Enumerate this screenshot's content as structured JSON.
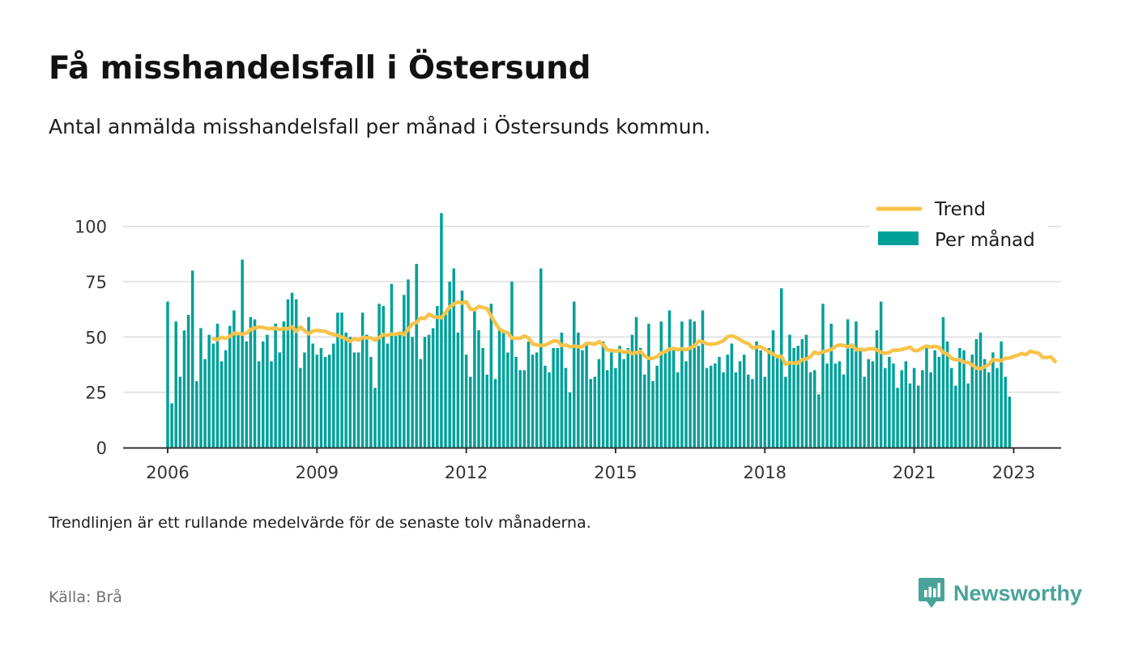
{
  "title": "Få misshandelsfall i Östersund",
  "subtitle": "Antal anmälda misshandelsfall per månad i Östersunds kommun.",
  "note": "Trendlinjen är ett rullande medelvärde för de senaste tolv månaderna.",
  "source": "Källa: Brå",
  "brand": "Newsworthy",
  "colors": {
    "bars": "#00a099",
    "trend": "#f8c34a",
    "grid": "#dddddd",
    "axis": "#333333",
    "brand": "#4aa39a"
  },
  "chart_data": {
    "type": "bar",
    "x_start": "2006-01",
    "xticks": [
      "2006",
      "2009",
      "2012",
      "2015",
      "2018",
      "2021",
      "2023"
    ],
    "yticks": [
      "0",
      "25",
      "50",
      "75",
      "100"
    ],
    "ylim": [
      0,
      110
    ],
    "grid": true,
    "legend_position": "top-right",
    "series": [
      {
        "name": "Per månad",
        "kind": "bar",
        "values": [
          66,
          20,
          57,
          32,
          53,
          60,
          80,
          30,
          54,
          40,
          51,
          47,
          56,
          39,
          44,
          55,
          62,
          52,
          85,
          48,
          59,
          58,
          39,
          48,
          51,
          39,
          56,
          43,
          57,
          67,
          70,
          67,
          36,
          43,
          59,
          47,
          42,
          45,
          41,
          42,
          47,
          61,
          61,
          52,
          50,
          43,
          43,
          61,
          51,
          41,
          27,
          65,
          64,
          47,
          74,
          51,
          52,
          69,
          76,
          50,
          83,
          40,
          50,
          51,
          54,
          64,
          106,
          61,
          75,
          81,
          52,
          71,
          42,
          32,
          62,
          53,
          45,
          33,
          65,
          31,
          53,
          52,
          43,
          75,
          41,
          35,
          35,
          48,
          42,
          43,
          81,
          37,
          34,
          45,
          45,
          52,
          36,
          25,
          66,
          52,
          44,
          47,
          31,
          32,
          40,
          48,
          35,
          43,
          36,
          46,
          40,
          45,
          51,
          59,
          45,
          33,
          56,
          30,
          37,
          57,
          44,
          62,
          45,
          34,
          57,
          39,
          58,
          57,
          46,
          62,
          36,
          37,
          38,
          41,
          34,
          42,
          47,
          34,
          39,
          42,
          33,
          31,
          48,
          44,
          32,
          45,
          53,
          41,
          72,
          32,
          51,
          45,
          46,
          49,
          51,
          34,
          35,
          24,
          65,
          38,
          56,
          38,
          39,
          33,
          58,
          45,
          57,
          44,
          32,
          40,
          39,
          53,
          66,
          36,
          41,
          38,
          27,
          35,
          39,
          29,
          36,
          28,
          35,
          46,
          34,
          44,
          41,
          59,
          48,
          36,
          28,
          45,
          44,
          29,
          42,
          49,
          52,
          40,
          34,
          43,
          36,
          48,
          32,
          23
        ]
      },
      {
        "name": "Trend",
        "kind": "line",
        "start_index": 11,
        "values": [
          49.2,
          48.8,
          49.9,
          49.4,
          50.3,
          51.7,
          51.6,
          51.3,
          51.7,
          53.4,
          54.0,
          54.5,
          54.3,
          53.8,
          53.8,
          54.0,
          53.4,
          53.8,
          53.7,
          54.6,
          52.5,
          54.5,
          52.9,
          51.4,
          52.7,
          53.0,
          52.7,
          52.6,
          51.6,
          51.2,
          50.7,
          49.9,
          49.2,
          48.0,
          49.2,
          48.6,
          49.8,
          49.6,
          49.6,
          48.6,
          49.7,
          51.1,
          50.8,
          51.3,
          51.2,
          51.8,
          51.1,
          53.5,
          55.9,
          56.6,
          58.6,
          58.3,
          60.3,
          59.2,
          58.9,
          58.7,
          61.0,
          63.6,
          64.9,
          65.8,
          65.3,
          65.9,
          62.6,
          62.3,
          63.8,
          63.3,
          62.9,
          59.4,
          56.3,
          53.6,
          52.5,
          51.9,
          49.5,
          49.4,
          49.4,
          50.5,
          49.6,
          46.9,
          46.4,
          46.2,
          46.3,
          47.2,
          48.2,
          48.2,
          46.1,
          46.4,
          45.5,
          45.9,
          45.6,
          45.6,
          47.1,
          47.1,
          46.7,
          47.9,
          46.5,
          44.2,
          43.9,
          43.6,
          43.9,
          43.1,
          43.5,
          42.5,
          42.9,
          43.5,
          41.4,
          40.4,
          40.4,
          41.1,
          42.7,
          43.4,
          44.5,
          44.8,
          44.2,
          44.7,
          44.2,
          45.1,
          45.8,
          48.2,
          47.8,
          46.9,
          46.7,
          46.9,
          47.5,
          48.3,
          50.1,
          50.5,
          49.9,
          48.8,
          47.6,
          47.1,
          45.1,
          45.4,
          45.6,
          44.4,
          43.2,
          42.3,
          41.1,
          41.3,
          37.7,
          38.4,
          38.2,
          38.2,
          39.8,
          40.0,
          41.1,
          43.2,
          42.4,
          43.3,
          43.8,
          44.3,
          45.7,
          46.4,
          46.2,
          45.5,
          46.4,
          44.2,
          44.4,
          44.1,
          44.6,
          44.7,
          44.2,
          43.0,
          42.6,
          43.0,
          44.1,
          44.0,
          44.3,
          44.9,
          45.4,
          43.8,
          43.9,
          45.1,
          45.9,
          45.4,
          45.8,
          45.3,
          43.0,
          42.3,
          40.3,
          39.7,
          39.7,
          38.6,
          38.5,
          37.4,
          35.9,
          35.7,
          36.5,
          37.5,
          39.8,
          39.5,
          39.3,
          40.4,
          40.5,
          41.1,
          41.8,
          42.5,
          42.0,
          43.6,
          43.0,
          42.7,
          40.7,
          40.7,
          41.0,
          38.9
        ]
      }
    ]
  }
}
